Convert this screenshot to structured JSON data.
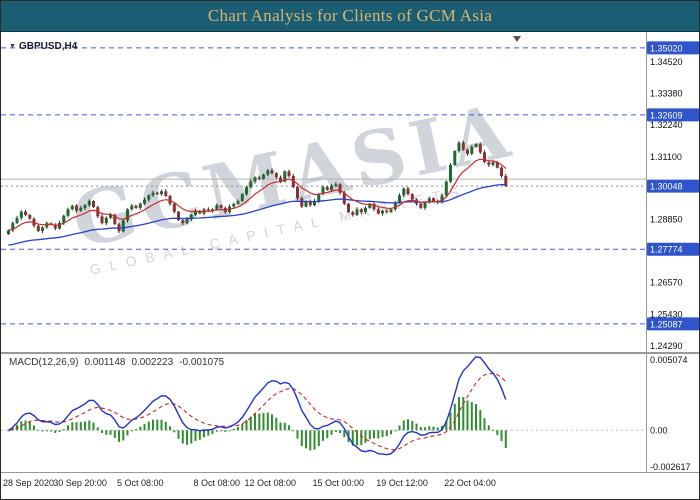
{
  "title_bar": {
    "text": "Chart Analysis for Clients of GCM Asia"
  },
  "watermark": {
    "line1": "GCMASIA",
    "line2": "GLOBAL CAPITAL MARKETS"
  },
  "chart_data": {
    "type": "candlestick",
    "title": "GBPUSD,H4",
    "symbol": "GBPUSD",
    "timeframe": "H4",
    "y_visible_range": [
      1.2429,
      1.3563
    ],
    "open_first": 1.2832,
    "closes": [
      1.2845,
      1.2872,
      1.289,
      1.2913,
      1.2901,
      1.2887,
      1.2862,
      1.2843,
      1.2856,
      1.2871,
      1.2866,
      1.2852,
      1.2872,
      1.2898,
      1.2921,
      1.2934,
      1.2916,
      1.2926,
      1.2936,
      1.2951,
      1.2929,
      1.2896,
      1.2871,
      1.2891,
      1.2902,
      1.2868,
      1.2842,
      1.2881,
      1.2921,
      1.2934,
      1.2926,
      1.2941,
      1.2956,
      1.2971,
      1.2981,
      1.2976,
      1.2986,
      1.2969,
      1.2941,
      1.2912,
      1.2882,
      1.2871,
      1.2886,
      1.2901,
      1.2916,
      1.2906,
      1.2921,
      1.2916,
      1.2921,
      1.2936,
      1.2926,
      1.2911,
      1.2931,
      1.2941,
      1.2951,
      1.2976,
      1.3001,
      1.3021,
      1.3036,
      1.3031,
      1.3046,
      1.3061,
      1.3051,
      1.3036,
      1.3021,
      1.3058,
      1.3041,
      1.3001,
      1.2961,
      1.2931,
      1.2951,
      1.2936,
      1.2951,
      1.2976,
      1.3001,
      1.2991,
      1.3006,
      1.3011,
      1.2981,
      1.2941,
      1.2911,
      1.2901,
      1.2921,
      1.2911,
      1.2926,
      1.2941,
      1.2921,
      1.2906,
      1.2916,
      1.2911,
      1.2921,
      1.2946,
      1.2971,
      1.2996,
      1.2976,
      1.2956,
      1.2941,
      1.2926,
      1.2946,
      1.2961,
      1.2951,
      1.2946,
      1.2971,
      1.3021,
      1.3081,
      1.3131,
      1.3161,
      1.3136,
      1.3121,
      1.3146,
      1.3156,
      1.3126,
      1.3091,
      1.3081,
      1.3091,
      1.3071,
      1.3041,
      1.3005
    ],
    "y_grid_labels": [
      "1.34520",
      "1.33380",
      "1.32240",
      "1.31100",
      "1.29960",
      "1.28850",
      "1.26570",
      "1.25430",
      "1.24290"
    ],
    "levels": [
      {
        "price": 1.3502,
        "label": "1.35020"
      },
      {
        "price": 1.32609,
        "label": "1.32609"
      },
      {
        "price": 1.27774,
        "label": "1.27774"
      },
      {
        "price": 1.25087,
        "label": "1.25087"
      }
    ],
    "minor_line": 1.303,
    "current_price": {
      "price": 1.30048,
      "label": "1.30048"
    },
    "x_ticks": [
      {
        "label": "28 Sep 2020",
        "candle": 0
      },
      {
        "label": "30 Sep 20:00",
        "candle": 17
      },
      {
        "label": "5 Oct 08:00",
        "candle": 32
      },
      {
        "label": "8 Oct 08:00",
        "candle": 50
      },
      {
        "label": "12 Oct 08:00",
        "candle": 62
      },
      {
        "label": "15 Oct 00:00",
        "candle": 78
      },
      {
        "label": "19 Oct 12:00",
        "candle": 93
      },
      {
        "label": "22 Oct 04:00",
        "candle": 109
      }
    ],
    "indicators": {
      "ma_fast": {
        "type": "EMA",
        "period": 10
      },
      "ma_slow": {
        "type": "EMA",
        "period": 55,
        "seed": 1.279
      },
      "macd_params": {
        "fast": 12,
        "slow": 26,
        "signal": 9
      }
    },
    "macd": {
      "name": "MACD(12,26,9)",
      "values": [
        "0.001148",
        "0.002223",
        "-0.001075"
      ],
      "axis_max": "0.005074",
      "axis_zero": "0.00",
      "axis_min": "-0.002617",
      "range": [
        -0.002617,
        0.005074
      ]
    },
    "colors": {
      "level_line": "#3b5bd6",
      "badge_bg": "#2f55cc",
      "bull": "#1c6b2d",
      "bear": "#8f2f2f",
      "wick": "#2b2b2b",
      "ma_fast": "#cc2a2a",
      "ma_slow": "#2742cc",
      "hist": "#2f8f2f",
      "macd_main": "#2133cc",
      "macd_signal": "#cc2222"
    }
  }
}
